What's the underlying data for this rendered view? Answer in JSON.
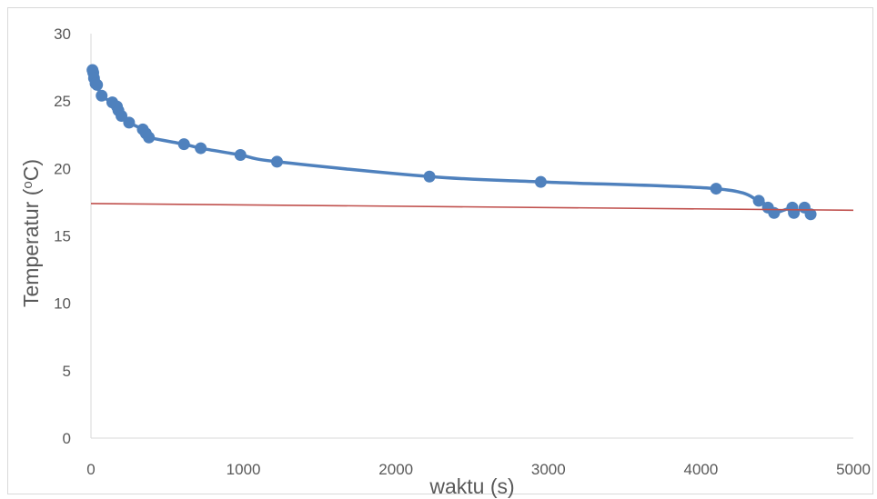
{
  "chart_data": {
    "type": "scatter",
    "title": "",
    "xlabel": "waktu (s)",
    "ylabel": "Temperatur (°C)",
    "xlim": [
      0,
      5000
    ],
    "ylim": [
      0,
      30
    ],
    "x_ticks": [
      0,
      1000,
      2000,
      3000,
      4000,
      5000
    ],
    "y_ticks": [
      0,
      5,
      10,
      15,
      20,
      25,
      30
    ],
    "grid": false,
    "legend": "none",
    "series": [
      {
        "color": "#4f81bd",
        "smooth_line": true,
        "markers": true,
        "x": [
          10,
          15,
          20,
          30,
          40,
          70,
          140,
          170,
          180,
          200,
          250,
          340,
          360,
          380,
          610,
          720,
          980,
          1220,
          2220,
          2950,
          4100,
          4380,
          4440,
          4480,
          4600,
          4610,
          4680,
          4720
        ],
        "y": [
          27.3,
          27.1,
          26.7,
          26.3,
          26.2,
          25.4,
          24.9,
          24.6,
          24.3,
          23.9,
          23.4,
          22.9,
          22.6,
          22.3,
          21.8,
          21.5,
          21.0,
          20.5,
          19.4,
          19.0,
          18.5,
          17.6,
          17.1,
          16.7,
          17.1,
          16.7,
          17.1,
          16.6
        ]
      },
      {
        "color": "#c0504d",
        "line_only": true,
        "x": [
          0,
          5000
        ],
        "y": [
          17.4,
          16.9
        ]
      }
    ]
  }
}
